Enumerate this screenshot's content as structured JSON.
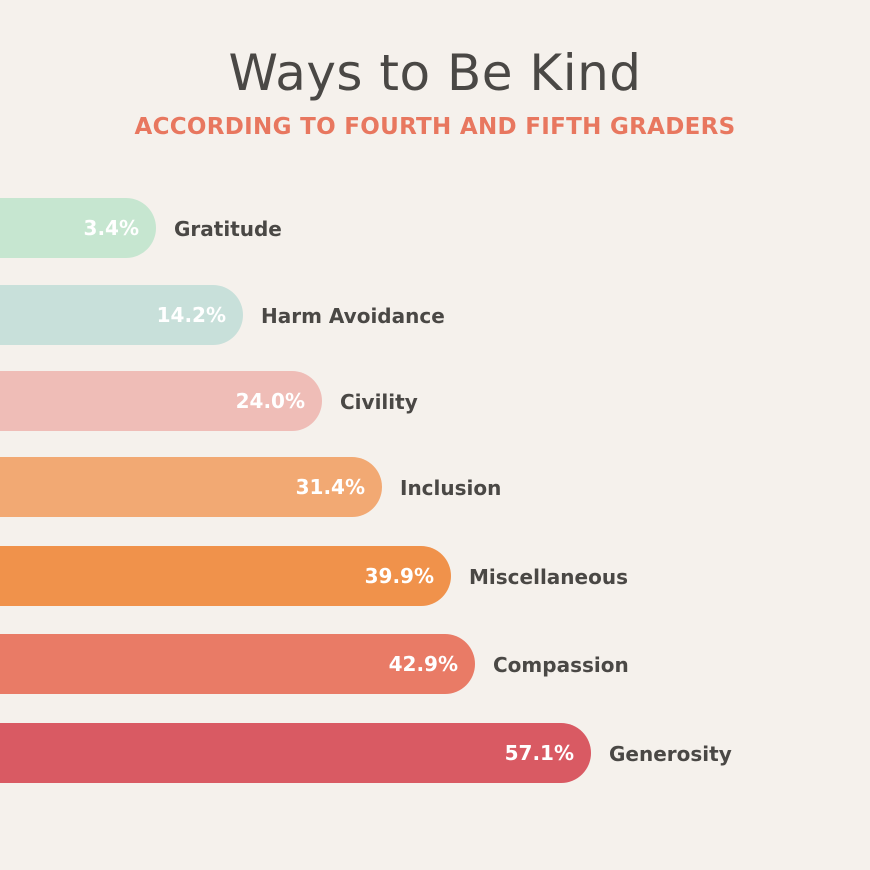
{
  "chart_data": {
    "type": "bar",
    "orientation": "horizontal",
    "title": "Ways to Be Kind",
    "subtitle": "ACCORDING TO FOURTH AND FIFTH GRADERS",
    "categories": [
      "Gratitude",
      "Harm Avoidance",
      "Civility",
      "Inclusion",
      "Miscellaneous",
      "Compassion",
      "Generosity"
    ],
    "values": [
      3.4,
      14.2,
      24.0,
      31.4,
      39.9,
      42.9,
      57.1
    ],
    "value_labels": [
      "3.4%",
      "14.2%",
      "24.0%",
      "31.4%",
      "39.9%",
      "42.9%",
      "57.1%"
    ],
    "colors": [
      "#c6e6d0",
      "#c8e0da",
      "#efbdb7",
      "#f2a973",
      "#f0924b",
      "#e97b66",
      "#d95a63"
    ],
    "grid": false,
    "legend": "none"
  }
}
